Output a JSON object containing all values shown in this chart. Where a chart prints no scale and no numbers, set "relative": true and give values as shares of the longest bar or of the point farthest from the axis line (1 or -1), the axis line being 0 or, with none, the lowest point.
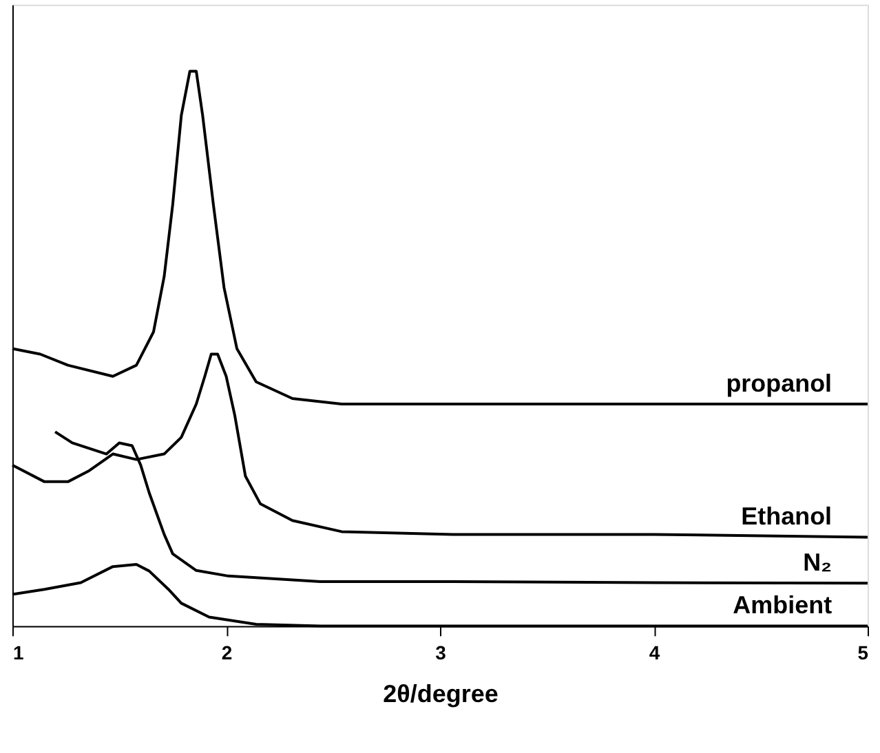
{
  "chart_data": {
    "type": "line",
    "relative": true,
    "xlabel": "2θ/degree",
    "xlim": [
      1,
      5
    ],
    "xticks": [
      1,
      2,
      3,
      4,
      5
    ],
    "tick_labels": "x",
    "grid": false,
    "legend": false,
    "marker": "none",
    "line_style": "solid",
    "series": [
      {
        "name": "propanol",
        "color": "#000000",
        "x": [
          1.0,
          1.13,
          1.26,
          1.47,
          1.58,
          1.66,
          1.71,
          1.75,
          1.79,
          1.83,
          1.86,
          1.89,
          1.94,
          1.99,
          2.05,
          2.14,
          2.31,
          2.54,
          3.06,
          4.0,
          5.0
        ],
        "values": [
          0.5,
          0.49,
          0.47,
          0.45,
          0.47,
          0.53,
          0.63,
          0.76,
          0.92,
          1.0,
          1.0,
          0.92,
          0.76,
          0.61,
          0.5,
          0.44,
          0.41,
          0.4,
          0.4,
          0.4,
          0.4
        ]
      },
      {
        "name": "Ethanol",
        "color": "#000000",
        "x": [
          1.0,
          1.15,
          1.26,
          1.36,
          1.47,
          1.58,
          1.71,
          1.79,
          1.86,
          1.9,
          1.93,
          1.96,
          2.0,
          2.04,
          2.09,
          2.16,
          2.31,
          2.54,
          3.06,
          4.0,
          5.0
        ],
        "values": [
          0.29,
          0.26,
          0.26,
          0.28,
          0.31,
          0.3,
          0.31,
          0.34,
          0.4,
          0.45,
          0.49,
          0.49,
          0.45,
          0.38,
          0.27,
          0.22,
          0.19,
          0.17,
          0.165,
          0.165,
          0.16
        ]
      },
      {
        "name": "N₂",
        "color": "#000000",
        "x": [
          1.2,
          1.28,
          1.44,
          1.5,
          1.56,
          1.6,
          1.64,
          1.71,
          1.75,
          1.86,
          2.01,
          2.44,
          3.06,
          4.0,
          5.0
        ],
        "values": [
          0.35,
          0.33,
          0.31,
          0.33,
          0.325,
          0.29,
          0.24,
          0.165,
          0.13,
          0.1,
          0.09,
          0.08,
          0.08,
          0.078,
          0.077
        ]
      },
      {
        "name": "Ambient",
        "color": "#000000",
        "x": [
          1.0,
          1.15,
          1.32,
          1.47,
          1.58,
          1.64,
          1.73,
          1.79,
          1.92,
          2.14,
          2.44,
          3.0,
          4.0,
          5.0
        ],
        "values": [
          0.057,
          0.066,
          0.078,
          0.107,
          0.111,
          0.099,
          0.066,
          0.041,
          0.016,
          0.003,
          0.0,
          0.0,
          0.0,
          0.0
        ]
      }
    ]
  }
}
